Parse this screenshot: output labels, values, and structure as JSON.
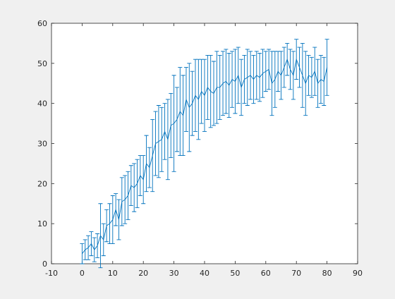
{
  "chart_data": {
    "type": "errorbar",
    "x": [
      0,
      1,
      2,
      3,
      4,
      5,
      6,
      7,
      8,
      9,
      10,
      11,
      12,
      13,
      14,
      15,
      16,
      17,
      18,
      19,
      20,
      21,
      22,
      23,
      24,
      25,
      26,
      27,
      28,
      29,
      30,
      31,
      32,
      33,
      34,
      35,
      36,
      37,
      38,
      39,
      40,
      41,
      42,
      43,
      44,
      45,
      46,
      47,
      48,
      49,
      50,
      51,
      52,
      53,
      54,
      55,
      56,
      57,
      58,
      59,
      60,
      61,
      62,
      63,
      64,
      65,
      66,
      67,
      68,
      69,
      70,
      71,
      72,
      73,
      74,
      75,
      76,
      77,
      78,
      79,
      80
    ],
    "values": [
      2.5,
      3.5,
      4,
      5,
      3.5,
      4.5,
      7,
      6,
      9.5,
      10,
      11,
      13.5,
      11,
      15.5,
      16,
      17,
      19.5,
      19,
      20,
      22,
      21,
      25,
      24,
      27,
      30,
      30.5,
      31,
      33,
      31,
      34.5,
      35,
      36,
      38,
      37,
      41,
      39,
      40,
      42,
      41,
      43,
      42,
      44,
      43,
      42.5,
      44,
      44,
      45,
      45.5,
      44.5,
      46,
      45.5,
      47,
      44,
      46,
      46.5,
      47,
      46,
      47,
      46.5,
      47.5,
      48,
      48.5,
      45,
      46,
      48,
      47,
      49,
      51,
      48.5,
      47,
      51,
      49,
      47,
      45,
      47,
      46.5,
      48,
      45,
      46,
      45.5,
      49
    ],
    "errors": [
      2.5,
      2.5,
      3,
      3,
      3,
      3,
      8,
      4,
      4,
      5,
      6,
      4,
      5,
      6,
      6,
      6,
      5,
      6,
      6,
      5,
      6,
      7,
      5,
      9,
      8,
      9,
      8,
      7,
      10,
      8,
      12,
      8,
      11,
      10,
      8,
      11,
      8,
      9,
      10,
      8,
      9,
      8,
      9,
      8,
      9,
      8,
      8,
      8,
      8,
      7,
      8,
      7,
      7,
      6,
      7,
      6,
      6,
      6,
      6,
      6,
      5,
      5,
      8,
      7,
      5,
      6,
      5,
      4,
      5,
      6,
      5,
      5,
      8,
      8,
      5,
      5,
      6,
      6,
      6,
      6,
      7
    ],
    "color": "#0072bd",
    "xlim": [
      -10,
      90
    ],
    "xticks": [
      -10,
      0,
      10,
      20,
      30,
      40,
      50,
      60,
      70,
      80,
      90
    ],
    "ylim": [
      0,
      60
    ],
    "yticks": [
      0,
      10,
      20,
      30,
      40,
      50,
      60
    ]
  }
}
